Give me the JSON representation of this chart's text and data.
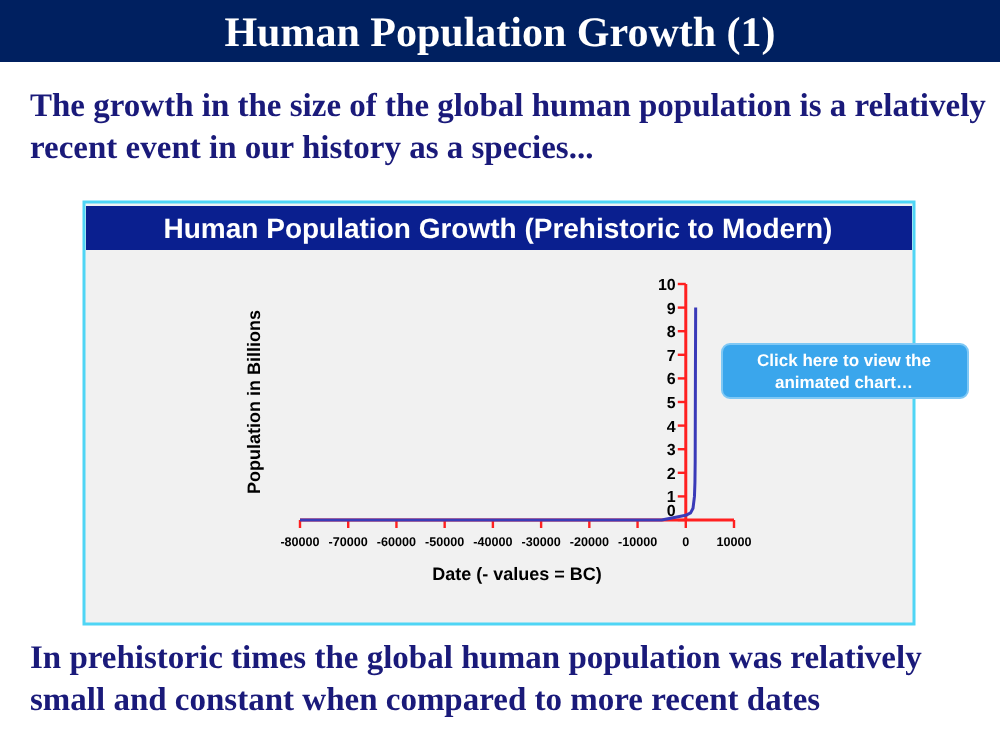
{
  "chart_data": {
    "type": "line",
    "title": "Human Population Growth (Prehistoric to Modern)",
    "xlabel": "Date (- values = BC)",
    "ylabel": "Population in Billions",
    "annotations": [
      "Human Population Growth (1)",
      "The growth in the size of the global human population is a relatively recent event in our history as a species...",
      "Click here to view the animated chart…",
      "In prehistoric times the global human population was relatively small and constant when compared to more recent dates"
    ],
    "x": [
      -80000,
      -10000,
      -5000,
      0,
      1000,
      1500,
      1800,
      1900,
      1950,
      2000,
      2050
    ],
    "series": [
      {
        "color": "#3a3ab8",
        "values": [
          0,
          0,
          0,
          0.2,
          0.3,
          0.5,
          1,
          1.6,
          2.5,
          6.1,
          9
        ]
      }
    ],
    "xlim": [
      -80000,
      10000
    ],
    "xticks": [
      -80000,
      -70000,
      -60000,
      -50000,
      -40000,
      -30000,
      -20000,
      -10000,
      0,
      10000
    ],
    "ylim": [
      0,
      10
    ],
    "yticks": [
      0,
      1,
      2,
      3,
      4,
      5,
      6,
      7,
      8,
      9,
      10
    ],
    "grid": false,
    "marker": "none",
    "line_style": "solid"
  }
}
